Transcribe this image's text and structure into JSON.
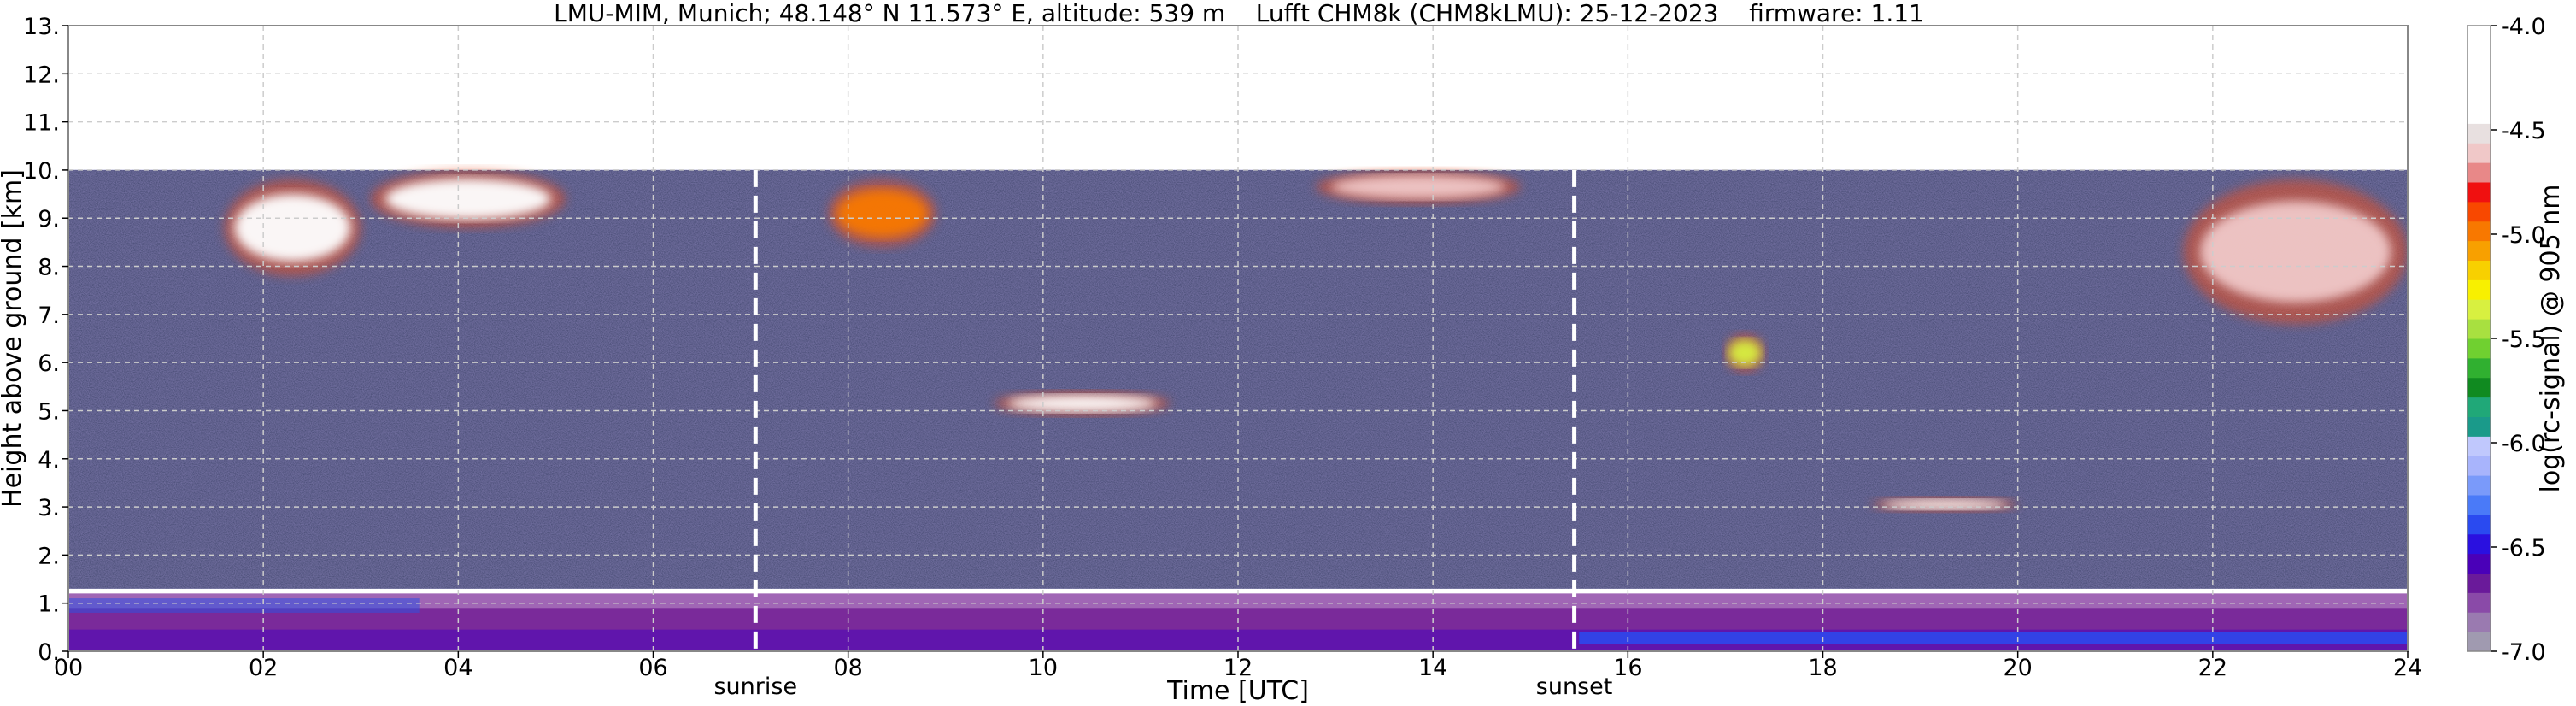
{
  "chart_data": {
    "type": "heatmap",
    "title": "LMU-MIM, Munich; 48.148° N 11.573° E, altitude: 539 m    Lufft CHM8k (CHM8kLMU): 25-12-2023    firmware: 1.11",
    "xlabel": "Time [UTC]",
    "ylabel": "Height above ground [km]",
    "xlim": [
      0,
      24
    ],
    "ylim": [
      0,
      13
    ],
    "x_ticks": [
      0,
      2,
      4,
      6,
      8,
      10,
      12,
      14,
      16,
      18,
      20,
      22,
      24
    ],
    "x_tick_labels": [
      "00",
      "02",
      "04",
      "06",
      "08",
      "10",
      "12",
      "14",
      "16",
      "18",
      "20",
      "22",
      "24"
    ],
    "y_ticks": [
      0,
      1,
      2,
      3,
      4,
      5,
      6,
      7,
      8,
      9,
      10,
      11,
      12,
      13
    ],
    "y_tick_labels": [
      "0.",
      "1.",
      "2.",
      "3.",
      "4.",
      "5.",
      "6.",
      "7.",
      "8.",
      "9.",
      "10.",
      "11.",
      "12.",
      "13."
    ],
    "grid": true,
    "data_top_km": 10,
    "markers": [
      {
        "label": "sunrise",
        "x": 7.05
      },
      {
        "label": "sunset",
        "x": 15.45
      }
    ],
    "colorbar": {
      "label": "log(rc-signal) @ 905 nm",
      "range": [
        -7.0,
        -4.0
      ],
      "ticks": [
        -7.0,
        -6.5,
        -6.0,
        -5.5,
        -5.0,
        -4.5,
        -4.0
      ],
      "tick_labels": [
        "-7.0",
        "-6.5",
        "-6.0",
        "-5.5",
        "-5.0",
        "-4.5",
        "-4.0"
      ],
      "colors": [
        "#a09ab0",
        "#9a7ab0",
        "#8a4aa8",
        "#6a1a9a",
        "#4a00b8",
        "#2a10e0",
        "#2a4af0",
        "#4a7af8",
        "#7a9afa",
        "#a8b4fc",
        "#c0c8fd",
        "#1a9a8a",
        "#20a878",
        "#108a20",
        "#30b030",
        "#70d030",
        "#a8e040",
        "#d8f040",
        "#f8f000",
        "#f8d000",
        "#f8a000",
        "#f87800",
        "#f84800",
        "#f01010",
        "#e88888",
        "#f0c8c8",
        "#e8e0e0",
        "#ffffff",
        "#ffffff",
        "#ffffff",
        "#ffffff",
        "#ffffff"
      ]
    },
    "layers": [
      {
        "feature": "noise background",
        "x": [
          0,
          24
        ],
        "y": [
          1.3,
          10.0
        ],
        "value": -6.4
      },
      {
        "feature": "boundary layer",
        "x": [
          0,
          24
        ],
        "y": [
          0.0,
          1.2
        ],
        "value": -6.8
      },
      {
        "feature": "high cloud",
        "x": [
          1.6,
          3.0
        ],
        "y": [
          7.8,
          9.8
        ],
        "value": -4.3
      },
      {
        "feature": "high cloud",
        "x": [
          3.1,
          5.1
        ],
        "y": [
          8.8,
          10.0
        ],
        "value": -4.2
      },
      {
        "feature": "high cloud",
        "x": [
          7.8,
          8.9
        ],
        "y": [
          8.4,
          9.8
        ],
        "value": -5.0
      },
      {
        "feature": "high cloud",
        "x": [
          12.8,
          14.9
        ],
        "y": [
          9.3,
          10.0
        ],
        "value": -4.6
      },
      {
        "feature": "mid cloud",
        "x": [
          9.5,
          11.3
        ],
        "y": [
          4.9,
          5.4
        ],
        "value": -4.1
      },
      {
        "feature": "mid cloud",
        "x": [
          17.0,
          17.4
        ],
        "y": [
          5.8,
          6.6
        ],
        "value": -5.4
      },
      {
        "feature": "low cloud",
        "x": [
          18.5,
          20.0
        ],
        "y": [
          2.9,
          3.2
        ],
        "value": -4.1
      },
      {
        "feature": "high cloud",
        "x": [
          21.7,
          24.0
        ],
        "y": [
          6.8,
          9.8
        ],
        "value": -4.6
      }
    ]
  }
}
